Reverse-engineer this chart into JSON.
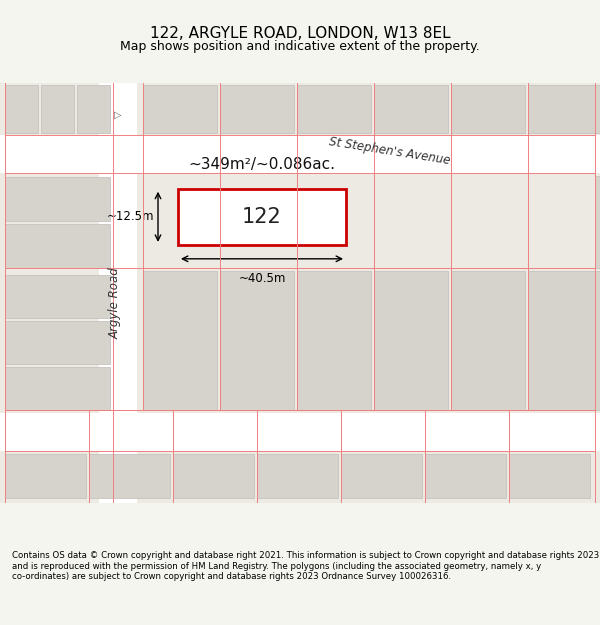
{
  "title": "122, ARGYLE ROAD, LONDON, W13 8EL",
  "subtitle": "Map shows position and indicative extent of the property.",
  "footer": "Contains OS data © Crown copyright and database right 2021. This information is subject to Crown copyright and database rights 2023 and is reproduced with the permission of HM Land Registry. The polygons (including the associated geometry, namely x, y co-ordinates) are subject to Crown copyright and database rights 2023 Ordnance Survey 100026316.",
  "area_label": "~349m²/~0.086ac.",
  "property_number": "122",
  "dim_width": "~40.5m",
  "dim_height": "~12.5m",
  "property_border": "#cc0000",
  "street_label_argyle": "Argyle Road",
  "street_label_st_stephen": "St Stephen's Avenue",
  "figsize": [
    6.0,
    6.25
  ],
  "dpi": 100
}
